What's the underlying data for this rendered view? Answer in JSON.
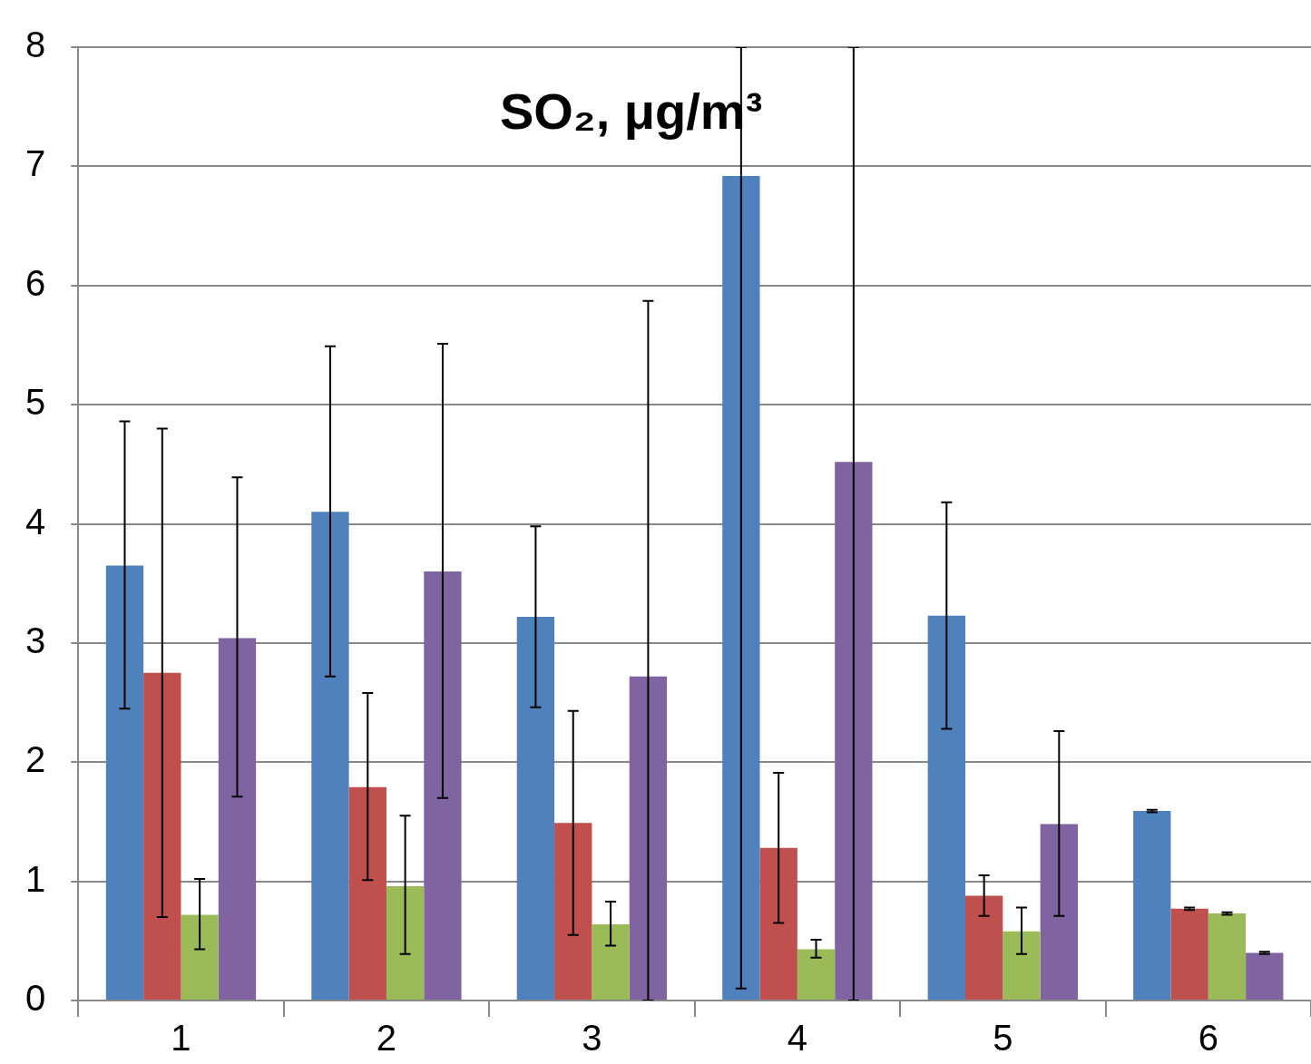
{
  "chart_data": {
    "type": "bar",
    "title": "SO₂, μg/m³",
    "categories": [
      "1",
      "2",
      "3",
      "4",
      "5",
      "6"
    ],
    "series": [
      {
        "color": "#4f81bd",
        "values": [
          3.65,
          4.1,
          3.22,
          6.92,
          3.23,
          1.59
        ],
        "errors": [
          [
            2.45,
            4.86
          ],
          [
            2.72,
            5.49
          ],
          [
            2.46,
            3.98
          ],
          [
            0.1,
            8
          ],
          [
            2.28,
            4.18
          ],
          [
            1.58,
            1.6
          ]
        ]
      },
      {
        "color": "#c0504d",
        "values": [
          2.75,
          1.79,
          1.49,
          1.28,
          0.88,
          0.77
        ],
        "errors": [
          [
            0.7,
            4.8
          ],
          [
            1.01,
            2.58
          ],
          [
            0.55,
            2.43
          ],
          [
            0.65,
            1.91
          ],
          [
            0.71,
            1.05
          ],
          [
            0.76,
            0.78
          ]
        ]
      },
      {
        "color": "#9bbb59",
        "values": [
          0.72,
          0.96,
          0.64,
          0.43,
          0.58,
          0.73
        ],
        "errors": [
          [
            0.43,
            1.02
          ],
          [
            0.39,
            1.55
          ],
          [
            0.46,
            0.83
          ],
          [
            0.36,
            0.51
          ],
          [
            0.39,
            0.78
          ],
          [
            0.72,
            0.74
          ]
        ]
      },
      {
        "color": "#8064a2",
        "values": [
          3.04,
          3.6,
          2.72,
          4.52,
          1.48,
          0.4
        ],
        "errors": [
          [
            1.71,
            4.39
          ],
          [
            1.7,
            5.51
          ],
          [
            0,
            5.87
          ],
          [
            0,
            8
          ],
          [
            0.71,
            2.26
          ],
          [
            0.39,
            0.41
          ]
        ]
      }
    ],
    "ylim": [
      0,
      8
    ],
    "yticks": [
      0,
      1,
      2,
      3,
      4,
      5,
      6,
      7,
      8
    ],
    "grid": "y",
    "legend": false
  }
}
